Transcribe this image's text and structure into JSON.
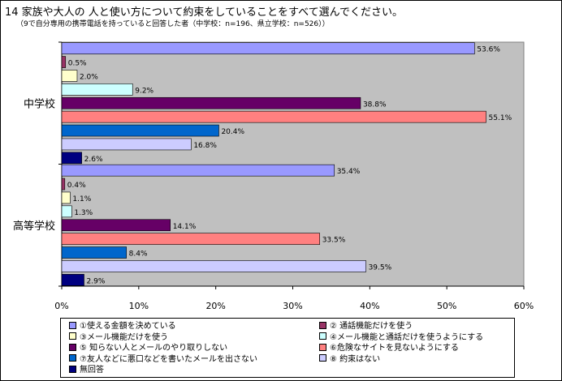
{
  "title": "14  家族や大人の 人と使い方について約束をしていることをすべて選んでください。",
  "subtitle": "（9で自分専用の携帯電話を持っていると回答した者（中学校：n=196、県立学校：n=526））",
  "chart_data": {
    "type": "bar",
    "orientation": "horizontal",
    "groups": [
      "中学校",
      "高等学校"
    ],
    "series": [
      {
        "name": "①使える金額を決めている",
        "color": "#9999ff",
        "values": [
          53.6,
          35.4
        ]
      },
      {
        "name": "② 通話機能だけを使う",
        "color": "#993366",
        "values": [
          0.5,
          0.4
        ]
      },
      {
        "name": "③メール機能だけを使う",
        "color": "#ffffcc",
        "values": [
          2.0,
          1.1
        ]
      },
      {
        "name": "④メール機能と通話だけを使うようにする",
        "color": "#ccffff",
        "values": [
          9.2,
          1.3
        ]
      },
      {
        "name": "⑤ 知らない人とメールのやり取りしない",
        "color": "#660066",
        "values": [
          38.8,
          14.1
        ]
      },
      {
        "name": "⑥危険なサイトを見ないようにする",
        "color": "#ff8080",
        "values": [
          55.1,
          33.5
        ]
      },
      {
        "name": "⑦友人などに悪口などを書いたメールを出さない",
        "color": "#0066cc",
        "values": [
          20.4,
          8.4
        ]
      },
      {
        "name": "⑧ 約束はない",
        "color": "#ccccff",
        "values": [
          16.8,
          39.5
        ]
      },
      {
        "name": "無回答",
        "color": "#000080",
        "values": [
          2.6,
          2.9
        ]
      }
    ],
    "value_labels": [
      [
        "53.6%",
        "0.5%",
        "2.0%",
        "9.2%",
        "38.8%",
        "55.1%",
        "20.4%",
        "16.8%",
        "2.6%"
      ],
      [
        "35.4%",
        "0.4%",
        "1.1%",
        "1.3%",
        "14.1%",
        "33.5%",
        "8.4%",
        "39.5%",
        "2.9%"
      ]
    ],
    "xlim": [
      0,
      60
    ],
    "xticks": [
      "0%",
      "10%",
      "20%",
      "30%",
      "40%",
      "50%",
      "60%"
    ],
    "plot_background": "#c0c0c0",
    "legend_position": "bottom"
  }
}
